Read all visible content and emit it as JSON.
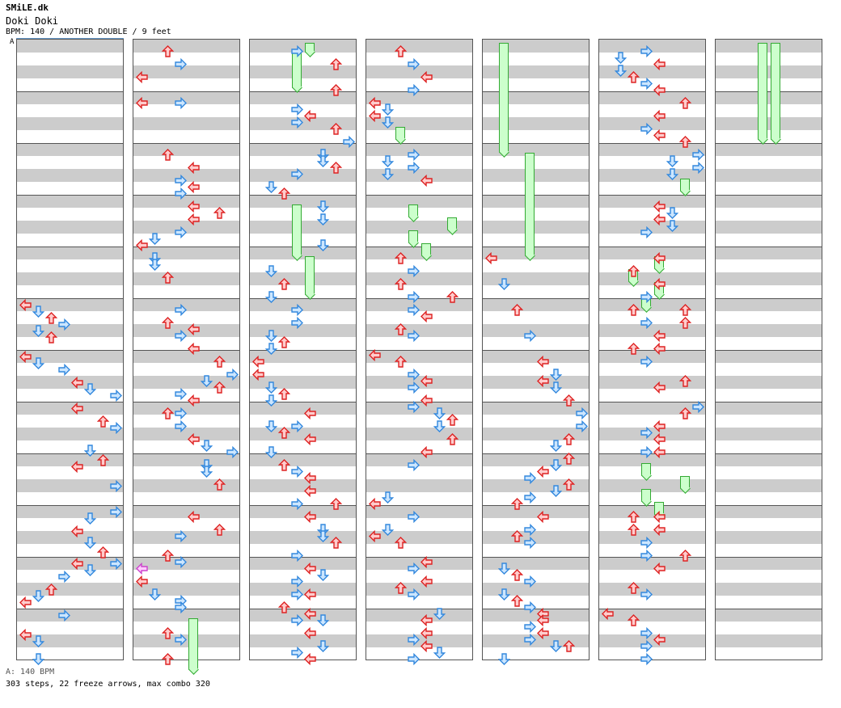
{
  "header": {
    "site": "SMiLE.dk",
    "title": "Doki Doki",
    "info": "BPM: 140 / ANOTHER DOUBLE / 9 feet",
    "bpm_change_label": "A"
  },
  "footer": {
    "bpm_line": "A: 140 BPM",
    "stats": "303 steps, 22 freeze arrows, max combo 320"
  },
  "colors": {
    "red_arrow": "#ffcccc",
    "blue_arrow": "#cce6ff",
    "freeze": "#ccffcc"
  },
  "chart": {
    "columns": 7,
    "measures_per_column": 12,
    "lanes": 8,
    "notes": [
      [
        0,
        0,
        322
      ],
      [
        1,
        0,
        330
      ],
      [
        2,
        0,
        338
      ],
      [
        3,
        0,
        346
      ],
      [
        1,
        0,
        354
      ],
      [
        2,
        0,
        362
      ],
      [
        0,
        0,
        386
      ],
      [
        1,
        0,
        394
      ],
      [
        3,
        0,
        402
      ],
      [
        4,
        0,
        418
      ],
      [
        5,
        0,
        426
      ],
      [
        7,
        0,
        434
      ],
      [
        4,
        0,
        450
      ],
      [
        6,
        0,
        466
      ],
      [
        7,
        0,
        474
      ],
      [
        5,
        0,
        502
      ],
      [
        6,
        0,
        514
      ],
      [
        4,
        0,
        522
      ],
      [
        7,
        0,
        546
      ],
      [
        7,
        0,
        578
      ],
      [
        5,
        0,
        586
      ],
      [
        4,
        0,
        602
      ],
      [
        5,
        0,
        616
      ],
      [
        6,
        0,
        628
      ],
      [
        4,
        0,
        642
      ],
      [
        7,
        0,
        642
      ],
      [
        5,
        0,
        650
      ],
      [
        3,
        0,
        658
      ],
      [
        2,
        0,
        674
      ],
      [
        1,
        0,
        682
      ],
      [
        0,
        0,
        690
      ],
      [
        3,
        0,
        706
      ],
      [
        0,
        0,
        730
      ],
      [
        1,
        0,
        738
      ],
      [
        1,
        0,
        760
      ],
      [
        2,
        1,
        8
      ],
      [
        3,
        1,
        24
      ],
      [
        0,
        1,
        40
      ],
      [
        0,
        1,
        72
      ],
      [
        3,
        1,
        72
      ],
      [
        2,
        1,
        136
      ],
      [
        4,
        1,
        152
      ],
      [
        3,
        1,
        168
      ],
      [
        4,
        1,
        176
      ],
      [
        3,
        1,
        184
      ],
      [
        4,
        1,
        200
      ],
      [
        6,
        1,
        208
      ],
      [
        4,
        1,
        216
      ],
      [
        3,
        1,
        232
      ],
      [
        1,
        1,
        240
      ],
      [
        0,
        1,
        248
      ],
      [
        1,
        1,
        264
      ],
      [
        1,
        1,
        272
      ],
      [
        2,
        1,
        288
      ],
      [
        3,
        1,
        328
      ],
      [
        2,
        1,
        344
      ],
      [
        4,
        1,
        352
      ],
      [
        3,
        1,
        360
      ],
      [
        4,
        1,
        376
      ],
      [
        6,
        1,
        392
      ],
      [
        7,
        1,
        408
      ],
      [
        5,
        1,
        416
      ],
      [
        6,
        1,
        424
      ],
      [
        3,
        1,
        432
      ],
      [
        4,
        1,
        440
      ],
      [
        2,
        1,
        456
      ],
      [
        3,
        1,
        456
      ],
      [
        3,
        1,
        472
      ],
      [
        4,
        1,
        488
      ],
      [
        5,
        1,
        496
      ],
      [
        7,
        1,
        504
      ],
      [
        5,
        1,
        520
      ],
      [
        5,
        1,
        528
      ],
      [
        6,
        1,
        544
      ],
      [
        4,
        1,
        584
      ],
      [
        3,
        1,
        608
      ],
      [
        6,
        1,
        600
      ],
      [
        2,
        1,
        632
      ],
      [
        3,
        1,
        640
      ],
      [
        0,
        1,
        648
      ],
      [
        0,
        1,
        664
      ],
      [
        1,
        1,
        680
      ],
      [
        3,
        1,
        688
      ],
      [
        3,
        1,
        696
      ],
      [
        2,
        1,
        728
      ],
      [
        3,
        1,
        736
      ],
      [
        2,
        1,
        760
      ],
      [
        3,
        2,
        8
      ],
      [
        6,
        2,
        24
      ],
      [
        6,
        2,
        56
      ],
      [
        3,
        2,
        80
      ],
      [
        4,
        2,
        88
      ],
      [
        3,
        2,
        96
      ],
      [
        6,
        2,
        104
      ],
      [
        7,
        2,
        120
      ],
      [
        5,
        2,
        136
      ],
      [
        5,
        2,
        144
      ],
      [
        6,
        2,
        152
      ],
      [
        3,
        2,
        160
      ],
      [
        1,
        2,
        176
      ],
      [
        2,
        2,
        184
      ],
      [
        5,
        2,
        200
      ],
      [
        5,
        2,
        216
      ],
      [
        5,
        2,
        248
      ],
      [
        1,
        2,
        280
      ],
      [
        2,
        2,
        296
      ],
      [
        1,
        2,
        312
      ],
      [
        3,
        2,
        328
      ],
      [
        3,
        2,
        344
      ],
      [
        1,
        2,
        360
      ],
      [
        2,
        2,
        368
      ],
      [
        1,
        2,
        376
      ],
      [
        0,
        2,
        392
      ],
      [
        0,
        2,
        408
      ],
      [
        1,
        2,
        424
      ],
      [
        2,
        2,
        432
      ],
      [
        1,
        2,
        440
      ],
      [
        4,
        2,
        456
      ],
      [
        3,
        2,
        472
      ],
      [
        1,
        2,
        472
      ],
      [
        2,
        2,
        480
      ],
      [
        4,
        2,
        488
      ],
      [
        1,
        2,
        504
      ],
      [
        2,
        2,
        520
      ],
      [
        3,
        2,
        528
      ],
      [
        4,
        2,
        536
      ],
      [
        4,
        2,
        552
      ],
      [
        3,
        2,
        568
      ],
      [
        6,
        2,
        568
      ],
      [
        4,
        2,
        584
      ],
      [
        5,
        2,
        600
      ],
      [
        5,
        2,
        608
      ],
      [
        6,
        2,
        616
      ],
      [
        3,
        2,
        632
      ],
      [
        4,
        2,
        648
      ],
      [
        5,
        2,
        656
      ],
      [
        3,
        2,
        664
      ],
      [
        3,
        2,
        680
      ],
      [
        4,
        2,
        680
      ],
      [
        2,
        2,
        696
      ],
      [
        4,
        2,
        704
      ],
      [
        3,
        2,
        712
      ],
      [
        5,
        2,
        712
      ],
      [
        4,
        2,
        728
      ],
      [
        5,
        2,
        744
      ],
      [
        3,
        2,
        752
      ],
      [
        4,
        2,
        760
      ],
      [
        2,
        3,
        8
      ],
      [
        3,
        3,
        24
      ],
      [
        4,
        3,
        40
      ],
      [
        3,
        3,
        56
      ],
      [
        0,
        3,
        72
      ],
      [
        1,
        3,
        80
      ],
      [
        0,
        3,
        88
      ],
      [
        1,
        3,
        96
      ],
      [
        3,
        3,
        136
      ],
      [
        1,
        3,
        144
      ],
      [
        3,
        3,
        152
      ],
      [
        1,
        3,
        160
      ],
      [
        4,
        3,
        168
      ],
      [
        2,
        3,
        264
      ],
      [
        3,
        3,
        280
      ],
      [
        2,
        3,
        296
      ],
      [
        3,
        3,
        312
      ],
      [
        3,
        3,
        328
      ],
      [
        6,
        3,
        312
      ],
      [
        4,
        3,
        336
      ],
      [
        2,
        3,
        352
      ],
      [
        3,
        3,
        360
      ],
      [
        0,
        3,
        384
      ],
      [
        2,
        3,
        392
      ],
      [
        3,
        3,
        408
      ],
      [
        4,
        3,
        416
      ],
      [
        3,
        3,
        424
      ],
      [
        4,
        3,
        440
      ],
      [
        3,
        3,
        448
      ],
      [
        5,
        3,
        456
      ],
      [
        6,
        3,
        464
      ],
      [
        5,
        3,
        472
      ],
      [
        6,
        3,
        488
      ],
      [
        4,
        3,
        504
      ],
      [
        3,
        3,
        520
      ],
      [
        1,
        3,
        560
      ],
      [
        0,
        3,
        568
      ],
      [
        3,
        3,
        584
      ],
      [
        1,
        3,
        600
      ],
      [
        0,
        3,
        608
      ],
      [
        2,
        3,
        616
      ],
      [
        4,
        3,
        640
      ],
      [
        3,
        3,
        648
      ],
      [
        4,
        3,
        664
      ],
      [
        2,
        3,
        672
      ],
      [
        3,
        3,
        680
      ],
      [
        5,
        3,
        704
      ],
      [
        4,
        3,
        712
      ],
      [
        4,
        3,
        728
      ],
      [
        3,
        3,
        736
      ],
      [
        4,
        3,
        744
      ],
      [
        5,
        3,
        752
      ],
      [
        3,
        3,
        760
      ],
      [
        0,
        4,
        264
      ],
      [
        1,
        4,
        296
      ],
      [
        2,
        4,
        328
      ],
      [
        3,
        4,
        360
      ],
      [
        4,
        4,
        392
      ],
      [
        5,
        4,
        408
      ],
      [
        4,
        4,
        416
      ],
      [
        5,
        4,
        424
      ],
      [
        6,
        4,
        440
      ],
      [
        7,
        4,
        456
      ],
      [
        7,
        4,
        472
      ],
      [
        6,
        4,
        488
      ],
      [
        5,
        4,
        496
      ],
      [
        6,
        4,
        512
      ],
      [
        5,
        4,
        520
      ],
      [
        4,
        4,
        528
      ],
      [
        3,
        4,
        536
      ],
      [
        6,
        4,
        544
      ],
      [
        5,
        4,
        552
      ],
      [
        3,
        4,
        560
      ],
      [
        2,
        4,
        568
      ],
      [
        4,
        4,
        584
      ],
      [
        3,
        4,
        600
      ],
      [
        2,
        4,
        608
      ],
      [
        3,
        4,
        616
      ],
      [
        1,
        4,
        648
      ],
      [
        2,
        4,
        656
      ],
      [
        3,
        4,
        664
      ],
      [
        1,
        4,
        680
      ],
      [
        2,
        4,
        688
      ],
      [
        3,
        4,
        696
      ],
      [
        4,
        4,
        704
      ],
      [
        4,
        4,
        712
      ],
      [
        3,
        4,
        720
      ],
      [
        4,
        4,
        728
      ],
      [
        3,
        4,
        736
      ],
      [
        6,
        4,
        744
      ],
      [
        5,
        4,
        744
      ],
      [
        1,
        4,
        760
      ],
      [
        3,
        5,
        8
      ],
      [
        1,
        5,
        16
      ],
      [
        4,
        5,
        24
      ],
      [
        1,
        5,
        32
      ],
      [
        2,
        5,
        40
      ],
      [
        3,
        5,
        48
      ],
      [
        4,
        5,
        56
      ],
      [
        6,
        5,
        72
      ],
      [
        4,
        5,
        88
      ],
      [
        3,
        5,
        104
      ],
      [
        4,
        5,
        112
      ],
      [
        6,
        5,
        120
      ],
      [
        7,
        5,
        136
      ],
      [
        5,
        5,
        144
      ],
      [
        7,
        5,
        152
      ],
      [
        5,
        5,
        160
      ],
      [
        4,
        5,
        200
      ],
      [
        5,
        5,
        208
      ],
      [
        4,
        5,
        216
      ],
      [
        5,
        5,
        224
      ],
      [
        3,
        5,
        232
      ],
      [
        4,
        5,
        264
      ],
      [
        2,
        5,
        280
      ],
      [
        4,
        5,
        296
      ],
      [
        3,
        5,
        312
      ],
      [
        2,
        5,
        328
      ],
      [
        6,
        5,
        328
      ],
      [
        3,
        5,
        344
      ],
      [
        6,
        5,
        344
      ],
      [
        4,
        5,
        360
      ],
      [
        2,
        5,
        376
      ],
      [
        4,
        5,
        376
      ],
      [
        3,
        5,
        392
      ],
      [
        4,
        5,
        424
      ],
      [
        6,
        5,
        416
      ],
      [
        7,
        5,
        448
      ],
      [
        6,
        5,
        456
      ],
      [
        4,
        5,
        472
      ],
      [
        3,
        5,
        480
      ],
      [
        4,
        5,
        488
      ],
      [
        3,
        5,
        504
      ],
      [
        4,
        5,
        504
      ],
      [
        2,
        5,
        584
      ],
      [
        4,
        5,
        584
      ],
      [
        2,
        5,
        600
      ],
      [
        4,
        5,
        600
      ],
      [
        3,
        5,
        616
      ],
      [
        3,
        5,
        632
      ],
      [
        6,
        5,
        632
      ],
      [
        4,
        5,
        648
      ],
      [
        2,
        5,
        672
      ],
      [
        3,
        5,
        680
      ],
      [
        0,
        5,
        704
      ],
      [
        2,
        5,
        712
      ],
      [
        3,
        5,
        728
      ],
      [
        3,
        5,
        744
      ],
      [
        4,
        5,
        736
      ],
      [
        3,
        5,
        760
      ]
    ],
    "blue_lanes": [
      1,
      3,
      5,
      7
    ]
  }
}
